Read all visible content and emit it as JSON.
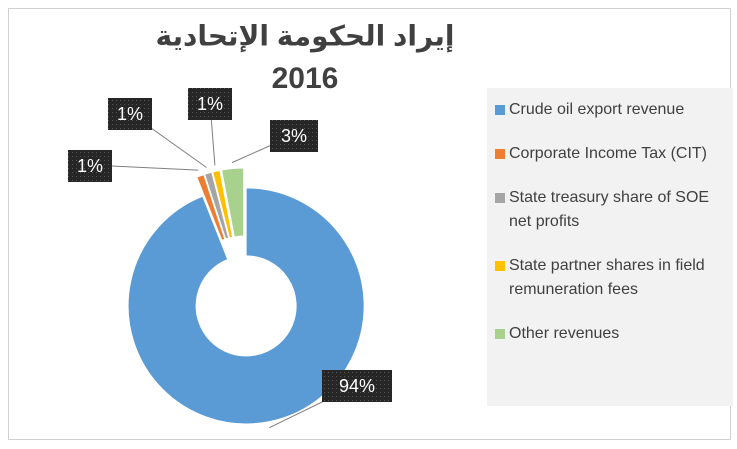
{
  "chart_data": {
    "type": "donut",
    "title": "إيراد الحكومة الإتحادية",
    "subtitle": "2016",
    "categories": [
      "Crude oil export revenue",
      "Corporate Income Tax (CIT)",
      "State treasury share of SOE net profits",
      "State partner shares in field remuneration fees",
      "Other revenues"
    ],
    "values": [
      94,
      1,
      1,
      1,
      3
    ],
    "value_labels": [
      "94%",
      "1%",
      "1%",
      "1%",
      "3%"
    ],
    "colors": [
      "#5b9bd5",
      "#ed7d31",
      "#a5a5a5",
      "#ffc000",
      "#a9d18e"
    ],
    "legend": "right"
  }
}
